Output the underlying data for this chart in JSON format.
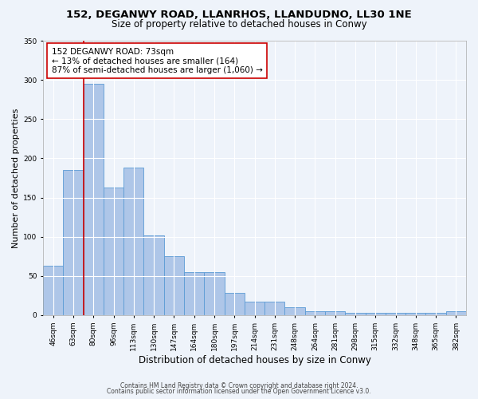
{
  "title1": "152, DEGANWY ROAD, LLANRHOS, LLANDUDNO, LL30 1NE",
  "title2": "Size of property relative to detached houses in Conwy",
  "xlabel": "Distribution of detached houses by size in Conwy",
  "ylabel": "Number of detached properties",
  "footnote1": "Contains HM Land Registry data © Crown copyright and database right 2024.",
  "footnote2": "Contains public sector information licensed under the Open Government Licence v3.0.",
  "bar_labels": [
    "46sqm",
    "63sqm",
    "80sqm",
    "96sqm",
    "113sqm",
    "130sqm",
    "147sqm",
    "164sqm",
    "180sqm",
    "197sqm",
    "214sqm",
    "231sqm",
    "248sqm",
    "264sqm",
    "281sqm",
    "298sqm",
    "315sqm",
    "332sqm",
    "348sqm",
    "365sqm",
    "382sqm"
  ],
  "bar_values": [
    63,
    185,
    295,
    163,
    188,
    102,
    75,
    55,
    55,
    28,
    17,
    17,
    10,
    5,
    5,
    3,
    3,
    3,
    3,
    3,
    5
  ],
  "bar_color": "#aec6e8",
  "bar_edge_color": "#5b9bd5",
  "bar_linewidth": 0.6,
  "vline_x_index": 1.5,
  "vline_color": "#cc0000",
  "ylim": [
    0,
    350
  ],
  "yticks": [
    0,
    50,
    100,
    150,
    200,
    250,
    300,
    350
  ],
  "annotation_text": "152 DEGANWY ROAD: 73sqm\n← 13% of detached houses are smaller (164)\n87% of semi-detached houses are larger (1,060) →",
  "annotation_box_color": "#ffffff",
  "annotation_box_edge": "#cc0000",
  "bg_color": "#eef3fa",
  "grid_color": "#ffffff",
  "title1_fontsize": 9.5,
  "title2_fontsize": 8.5,
  "xlabel_fontsize": 8.5,
  "ylabel_fontsize": 8,
  "tick_fontsize": 6.5,
  "annotation_fontsize": 7.5,
  "footnote_fontsize": 5.5
}
